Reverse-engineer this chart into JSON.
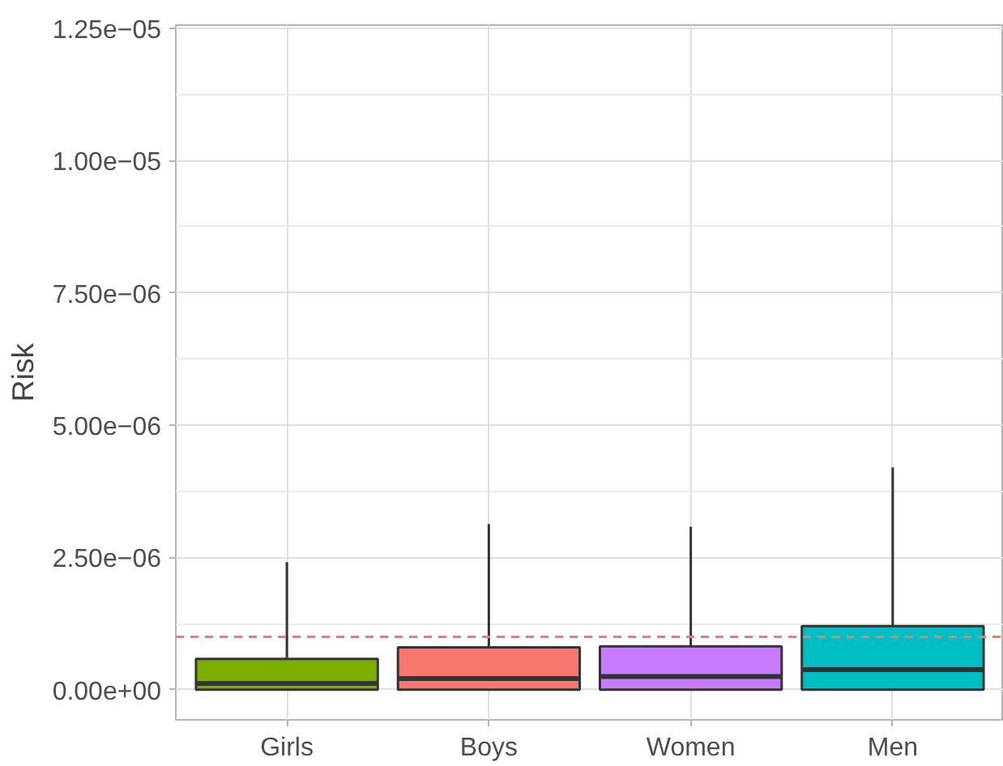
{
  "chart_data": {
    "type": "box",
    "ylabel": "Risk",
    "categories": [
      "Girls",
      "Boys",
      "Women",
      "Men"
    ],
    "colors": [
      "#7cae00",
      "#f8766d",
      "#c77cff",
      "#00bfc4"
    ],
    "boxes": [
      {
        "low": 0,
        "q1": 0,
        "median": 1.2e-07,
        "q3": 5.8e-07,
        "high": 2.41e-06
      },
      {
        "low": 0,
        "q1": 0,
        "median": 2.1e-07,
        "q3": 8e-07,
        "high": 3.13e-06
      },
      {
        "low": 0,
        "q1": 0,
        "median": 2.5e-07,
        "q3": 8.2e-07,
        "high": 3.08e-06
      },
      {
        "low": 0,
        "q1": 0,
        "median": 3.8e-07,
        "q3": 1.2e-06,
        "high": 4.2e-06
      }
    ],
    "ylim": [
      -5.7e-07,
      1.256e-05
    ],
    "yticks": [
      {
        "value": 0,
        "label": "0.00e+00"
      },
      {
        "value": 2.5e-06,
        "label": "2.50e−06"
      },
      {
        "value": 5e-06,
        "label": "5.00e−06"
      },
      {
        "value": 7.5e-06,
        "label": "7.50e−06"
      },
      {
        "value": 1e-05,
        "label": "1.00e−05"
      },
      {
        "value": 1.25e-05,
        "label": "1.25e−05"
      }
    ],
    "ref_lines": [
      {
        "axis": "y",
        "value": 1e-06,
        "label": null,
        "color": "#f8766d",
        "line_style": "dashed"
      }
    ],
    "grid": true
  }
}
